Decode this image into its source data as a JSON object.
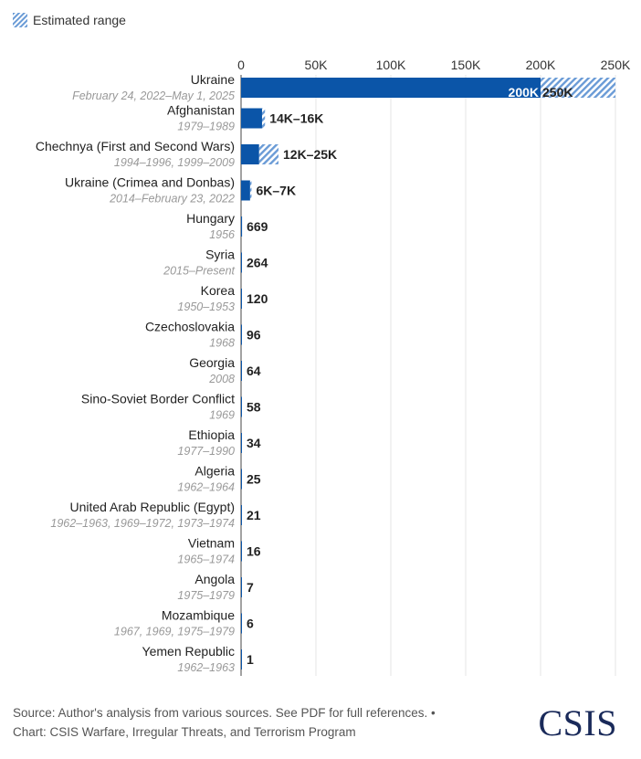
{
  "legend": {
    "label": "Estimated range"
  },
  "colors": {
    "bar": "#0b55a8",
    "hatch": "#6a9bd6",
    "axis": "#444444",
    "grid": "#e5e5e5",
    "name": "#222222",
    "period": "#999999"
  },
  "footer": {
    "line1": "Source: Author's analysis from various sources. See PDF for full references. •",
    "line2": "Chart: CSIS Warfare, Irregular Threats, and Terrorism Program",
    "logo": "CSIS"
  },
  "chart_data": {
    "type": "bar",
    "orientation": "horizontal",
    "xlim": [
      0,
      250000
    ],
    "xticks": [
      0,
      50000,
      100000,
      150000,
      200000,
      250000
    ],
    "xtick_labels": [
      "0",
      "50K",
      "100K",
      "150K",
      "200K",
      "250K"
    ],
    "legend_position": "top-left",
    "rows": [
      {
        "name": "Ukraine",
        "period": "February 24, 2022–May 1, 2025",
        "low": 200000,
        "high": 250000,
        "label_low": "200K",
        "label_high": "250K"
      },
      {
        "name": "Afghanistan",
        "period": "1979–1989",
        "low": 14000,
        "high": 16000,
        "label": "14K–16K"
      },
      {
        "name": "Chechnya (First and Second Wars)",
        "period": "1994–1996, 1999–2009",
        "low": 12000,
        "high": 25000,
        "label": "12K–25K"
      },
      {
        "name": "Ukraine (Crimea and Donbas)",
        "period": "2014–February 23, 2022",
        "low": 6000,
        "high": 7000,
        "label": "6K–7K"
      },
      {
        "name": "Hungary",
        "period": "1956",
        "low": 669,
        "high": 669,
        "label": "669"
      },
      {
        "name": "Syria",
        "period": "2015–Present",
        "low": 264,
        "high": 264,
        "label": "264"
      },
      {
        "name": "Korea",
        "period": "1950–1953",
        "low": 120,
        "high": 120,
        "label": "120"
      },
      {
        "name": "Czechoslovakia",
        "period": "1968",
        "low": 96,
        "high": 96,
        "label": "96"
      },
      {
        "name": "Georgia",
        "period": "2008",
        "low": 64,
        "high": 64,
        "label": "64"
      },
      {
        "name": "Sino-Soviet Border Conflict",
        "period": "1969",
        "low": 58,
        "high": 58,
        "label": "58"
      },
      {
        "name": "Ethiopia",
        "period": "1977–1990",
        "low": 34,
        "high": 34,
        "label": "34"
      },
      {
        "name": "Algeria",
        "period": "1962–1964",
        "low": 25,
        "high": 25,
        "label": "25"
      },
      {
        "name": "United Arab Republic (Egypt)",
        "period": "1962–1963, 1969–1972, 1973–1974",
        "low": 21,
        "high": 21,
        "label": "21"
      },
      {
        "name": "Vietnam",
        "period": "1965–1974",
        "low": 16,
        "high": 16,
        "label": "16"
      },
      {
        "name": "Angola",
        "period": "1975–1979",
        "low": 7,
        "high": 7,
        "label": "7"
      },
      {
        "name": "Mozambique",
        "period": "1967, 1969, 1975–1979",
        "low": 6,
        "high": 6,
        "label": "6"
      },
      {
        "name": "Yemen Republic",
        "period": "1962–1963",
        "low": 1,
        "high": 1,
        "label": "1"
      }
    ]
  }
}
